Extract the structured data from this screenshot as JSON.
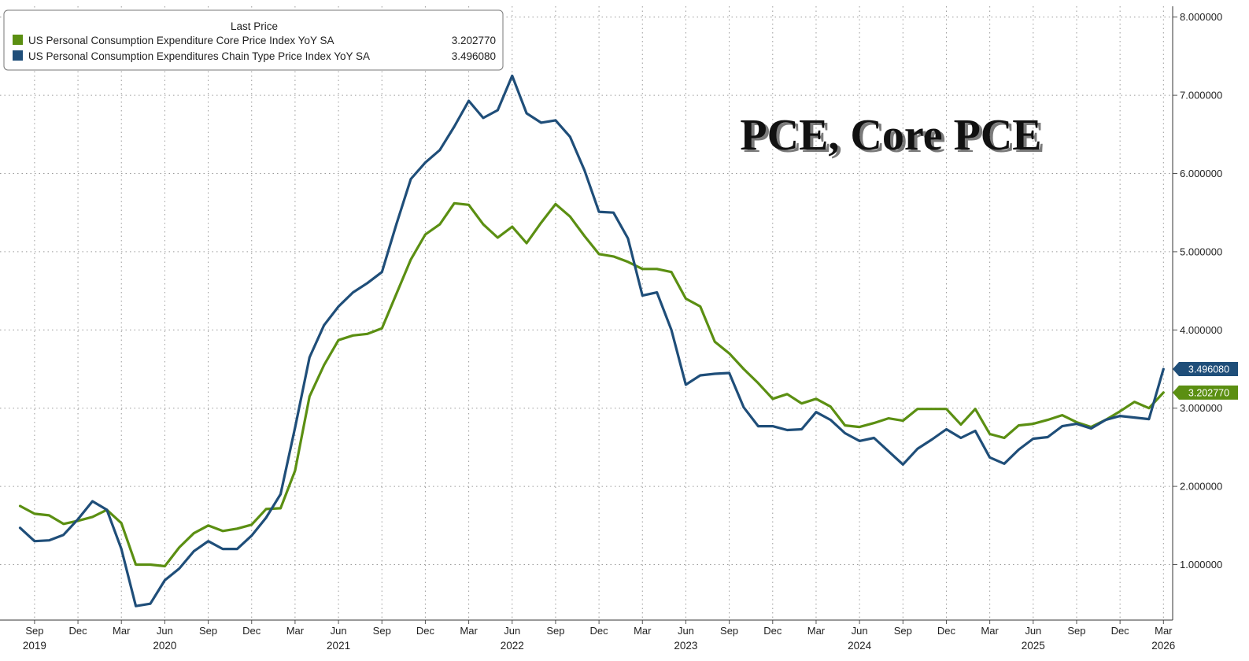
{
  "chart_data": {
    "type": "line",
    "title": "PCE, Core PCE",
    "legend_header": "Last Price",
    "legend_position": "top-left",
    "ylim": [
      0.3,
      8.1
    ],
    "yticks": [
      1,
      2,
      3,
      4,
      5,
      6,
      7,
      8
    ],
    "ytick_labels": [
      "1.000000",
      "2.000000",
      "3.000000",
      "4.000000",
      "5.000000",
      "6.000000",
      "7.000000",
      "8.000000"
    ],
    "x_start": "2019-08",
    "month_labels": [
      {
        "m": 1,
        "label": "Sep"
      },
      {
        "m": 4,
        "label": "Dec"
      },
      {
        "m": 7,
        "label": "Mar"
      },
      {
        "m": 10,
        "label": "Jun"
      },
      {
        "m": 13,
        "label": "Sep"
      },
      {
        "m": 16,
        "label": "Dec"
      },
      {
        "m": 19,
        "label": "Mar"
      },
      {
        "m": 22,
        "label": "Jun"
      },
      {
        "m": 25,
        "label": "Sep"
      },
      {
        "m": 28,
        "label": "Dec"
      },
      {
        "m": 31,
        "label": "Mar"
      },
      {
        "m": 34,
        "label": "Jun"
      },
      {
        "m": 37,
        "label": "Sep"
      },
      {
        "m": 40,
        "label": "Dec"
      },
      {
        "m": 43,
        "label": "Mar"
      },
      {
        "m": 46,
        "label": "Jun"
      },
      {
        "m": 49,
        "label": "Sep"
      },
      {
        "m": 52,
        "label": "Dec"
      },
      {
        "m": 55,
        "label": "Mar"
      },
      {
        "m": 58,
        "label": "Jun"
      },
      {
        "m": 61,
        "label": "Sep"
      },
      {
        "m": 64,
        "label": "Dec"
      },
      {
        "m": 67,
        "label": "Mar"
      },
      {
        "m": 70,
        "label": "Jun"
      },
      {
        "m": 73,
        "label": "Sep"
      },
      {
        "m": 76,
        "label": "Dec"
      },
      {
        "m": 79,
        "label": "Mar"
      }
    ],
    "year_labels": [
      {
        "m": 1,
        "label": "2019"
      },
      {
        "m": 10,
        "label": "2020"
      },
      {
        "m": 22,
        "label": "2021"
      },
      {
        "m": 34,
        "label": "2022"
      },
      {
        "m": 46,
        "label": "2023"
      },
      {
        "m": 58,
        "label": "2024"
      },
      {
        "m": 70,
        "label": "2025"
      },
      {
        "m": 79,
        "label": "2026"
      }
    ],
    "series": [
      {
        "name": "US Personal Consumption Expenditure Core Price Index YoY SA",
        "last_value": "3.202770",
        "color": "#5b8f12",
        "values": [
          1.75,
          1.65,
          1.63,
          1.52,
          1.56,
          1.61,
          1.7,
          1.53,
          1.0,
          1.0,
          0.98,
          1.22,
          1.4,
          1.5,
          1.43,
          1.46,
          1.51,
          1.71,
          1.72,
          2.2,
          3.15,
          3.55,
          3.87,
          3.93,
          3.95,
          4.02,
          4.46,
          4.9,
          5.22,
          5.35,
          5.62,
          5.6,
          5.35,
          5.18,
          5.32,
          5.11,
          5.37,
          5.61,
          5.45,
          5.2,
          4.97,
          4.94,
          4.87,
          4.78,
          4.78,
          4.74,
          4.4,
          4.3,
          3.85,
          3.7,
          3.5,
          3.32,
          3.12,
          3.18,
          3.06,
          3.12,
          3.02,
          2.78,
          2.76,
          2.81,
          2.87,
          2.84,
          2.99,
          2.99,
          2.99,
          2.79,
          2.99,
          2.67,
          2.62,
          2.78,
          2.8,
          2.85,
          2.91,
          2.82,
          2.76,
          2.85,
          2.96,
          3.08,
          3.0,
          3.2
        ]
      },
      {
        "name": "US Personal Consumption Expenditures Chain Type Price Index YoY SA",
        "last_value": "3.496080",
        "color": "#1f4e79",
        "values": [
          1.47,
          1.3,
          1.31,
          1.38,
          1.58,
          1.81,
          1.7,
          1.2,
          0.47,
          0.5,
          0.8,
          0.95,
          1.17,
          1.3,
          1.2,
          1.2,
          1.37,
          1.6,
          1.9,
          2.75,
          3.65,
          4.06,
          4.3,
          4.48,
          4.6,
          4.74,
          5.35,
          5.93,
          6.14,
          6.3,
          6.6,
          6.93,
          6.71,
          6.81,
          7.25,
          6.77,
          6.65,
          6.68,
          6.47,
          6.04,
          5.51,
          5.5,
          5.17,
          4.44,
          4.48,
          4.0,
          3.3,
          3.42,
          3.44,
          3.45,
          3.01,
          2.77,
          2.77,
          2.72,
          2.73,
          2.95,
          2.85,
          2.68,
          2.58,
          2.62,
          2.45,
          2.28,
          2.48,
          2.6,
          2.73,
          2.62,
          2.71,
          2.37,
          2.29,
          2.47,
          2.61,
          2.63,
          2.77,
          2.8,
          2.74,
          2.85,
          2.9,
          2.88,
          2.86,
          3.5
        ]
      }
    ]
  }
}
